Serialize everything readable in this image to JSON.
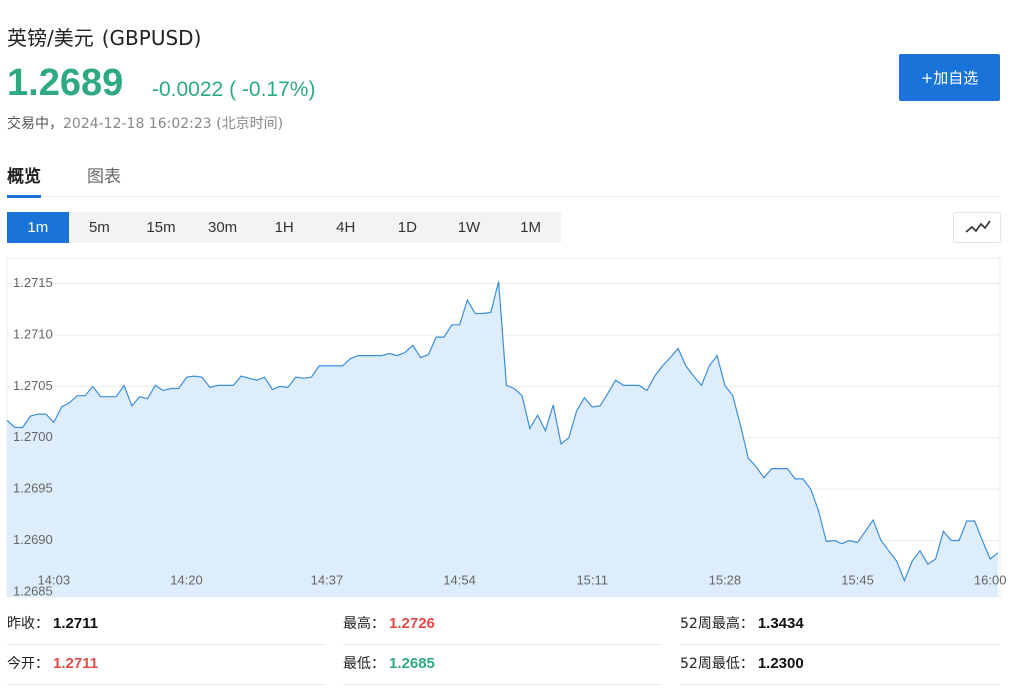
{
  "header": {
    "name": "英镑/美元",
    "symbol": "(GBPUSD)",
    "price": "1.2689",
    "change": "-0.0022",
    "change_pct": "( -0.17%)",
    "status": "交易中，",
    "timestamp": "2024-12-18 16:02:23 (北京时间)",
    "add_button": "+加自选"
  },
  "tabs": [
    "概览",
    "图表"
  ],
  "intervals": [
    "1m",
    "5m",
    "15m",
    "30m",
    "1H",
    "4H",
    "1D",
    "1W",
    "1M"
  ],
  "chart_data": {
    "type": "area",
    "color": "#3d8fdc",
    "fill_color": "#deedfb",
    "grid": true,
    "categories": [
      null,
      null,
      null,
      null,
      null,
      null,
      "14:03",
      null,
      null,
      null,
      null,
      null,
      null,
      null,
      null,
      null,
      null,
      null,
      null,
      null,
      null,
      null,
      null,
      "14:20",
      null,
      null,
      null,
      null,
      null,
      null,
      null,
      null,
      null,
      null,
      null,
      null,
      null,
      null,
      null,
      null,
      null,
      "14:37",
      null,
      null,
      null,
      null,
      null,
      null,
      null,
      null,
      null,
      null,
      null,
      null,
      null,
      null,
      null,
      null,
      "14:54",
      null,
      null,
      null,
      null,
      null,
      null,
      null,
      null,
      null,
      null,
      null,
      null,
      null,
      null,
      null,
      null,
      "15:11",
      null,
      null,
      null,
      null,
      null,
      null,
      null,
      null,
      null,
      null,
      null,
      null,
      null,
      null,
      null,
      null,
      "15:28",
      null,
      null,
      null,
      null,
      null,
      null,
      null,
      null,
      null,
      null,
      null,
      null,
      null,
      null,
      null,
      null,
      "15:45",
      null,
      null,
      null,
      null,
      null,
      null,
      null,
      null,
      null,
      null,
      null,
      null,
      null,
      null,
      null,
      null,
      "16:00",
      null
    ],
    "values": [
      1.27017,
      1.2701,
      1.2701,
      1.27021,
      1.27023,
      1.27023,
      1.27015,
      1.2703,
      1.27034,
      1.27041,
      1.27041,
      1.2705,
      1.2704,
      1.2704,
      1.2704,
      1.27051,
      1.27031,
      1.2704,
      1.27038,
      1.27051,
      1.27046,
      1.27048,
      1.27048,
      1.27059,
      1.2706,
      1.27059,
      1.27049,
      1.27051,
      1.27051,
      1.27051,
      1.2706,
      1.27058,
      1.27056,
      1.27059,
      1.27047,
      1.2705,
      1.27049,
      1.27059,
      1.27058,
      1.27059,
      1.2707,
      1.2707,
      1.2707,
      1.2707,
      1.27077,
      1.2708,
      1.2708,
      1.2708,
      1.2708,
      1.27082,
      1.2708,
      1.27083,
      1.2709,
      1.27078,
      1.27081,
      1.27098,
      1.27098,
      1.2711,
      1.2711,
      1.27134,
      1.27121,
      1.27121,
      1.27122,
      1.27152,
      1.27051,
      1.27048,
      1.27041,
      1.27009,
      1.27022,
      1.27007,
      1.27032,
      1.26994,
      1.27,
      1.27026,
      1.27039,
      1.2703,
      1.27031,
      1.27043,
      1.27056,
      1.27051,
      1.27051,
      1.27051,
      1.27046,
      1.2706,
      1.2707,
      1.27078,
      1.27087,
      1.2707,
      1.2706,
      1.27051,
      1.2707,
      1.2708,
      1.27051,
      1.27041,
      1.27012,
      1.2698,
      1.26972,
      1.26961,
      1.2697,
      1.2697,
      1.2697,
      1.2696,
      1.2696,
      1.2695,
      1.26929,
      1.26899,
      1.269,
      1.26897,
      1.269,
      1.26898,
      1.26909,
      1.2692,
      1.269,
      1.2689,
      1.2688,
      1.26861,
      1.2688,
      1.2689,
      1.26877,
      1.26882,
      1.26909,
      1.269,
      1.269,
      1.26919,
      1.26919,
      1.269,
      1.26882,
      1.26888
    ],
    "ylim": [
      1.26845,
      1.27175
    ],
    "yticks": [
      1.2715,
      {
        "value": 1.271,
        "label": "1.2710"
      },
      1.2705,
      {
        "value": 1.27,
        "label": "1.2700"
      },
      1.2695,
      {
        "value": 1.269,
        "label": "1.2690"
      },
      1.2685
    ]
  },
  "stats": [
    [
      {
        "label": "昨收：",
        "value": "1.2711",
        "color": "#111111"
      },
      {
        "label": "最高：",
        "value": "1.2726",
        "color": "#e84a4a"
      },
      {
        "label": "52周最高：",
        "value": "1.3434",
        "color": "#111111"
      }
    ],
    [
      {
        "label": "今开：",
        "value": "1.2711",
        "color": "#e84a4a"
      },
      {
        "label": "最低：",
        "value": "1.2685",
        "color": "#2eaa7e"
      },
      {
        "label": "52周最低：",
        "value": "1.2300",
        "color": "#111111"
      }
    ]
  ]
}
